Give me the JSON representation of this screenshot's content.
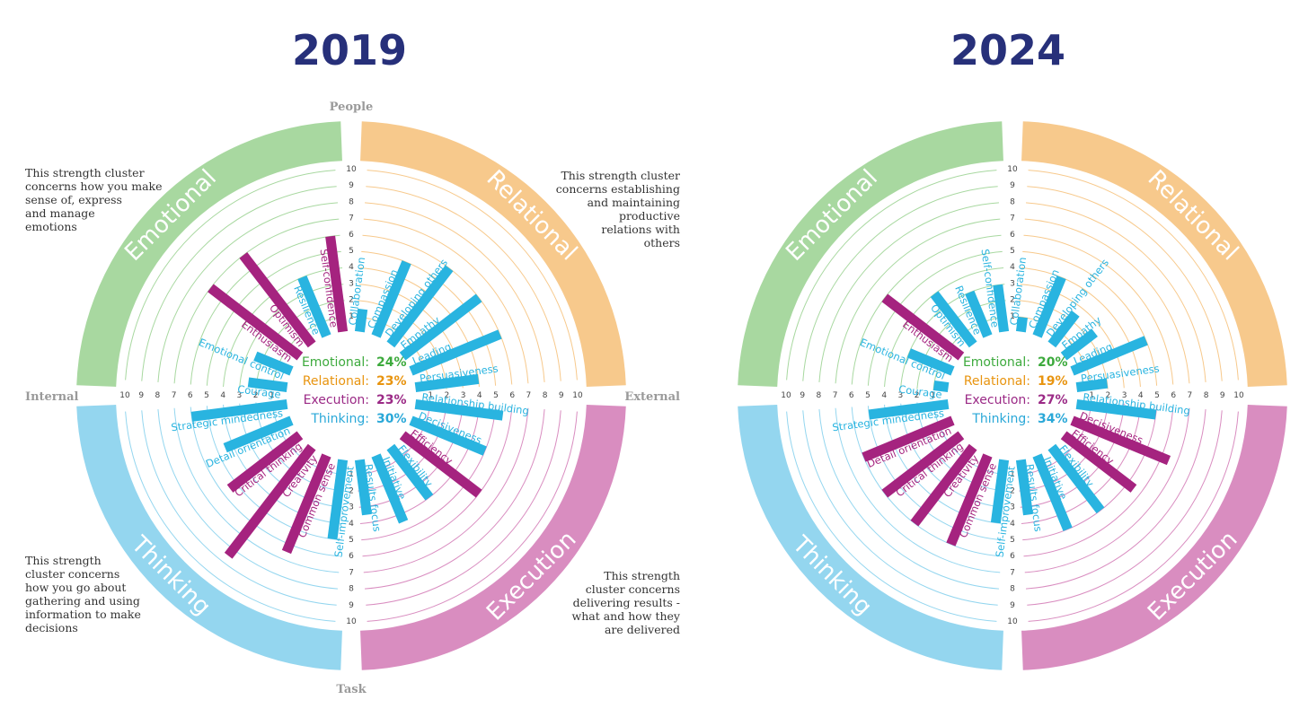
{
  "colors": {
    "Emotional": "#a8d8a0",
    "Relational": "#f7c98c",
    "Execution": "#d98dc0",
    "Thinking": "#94d6ef",
    "bar_cyan": "#29b4e0",
    "bar_magenta": "#a5237f",
    "year_text": "#27307a",
    "summary_Emotional": "#3daa3d",
    "summary_Relational": "#e8940f",
    "summary_Execution": "#9b2a86",
    "summary_Thinking": "#2aa8d8"
  },
  "axes": {
    "top": "People",
    "bottom": "Task",
    "left": "Internal",
    "right": "External"
  },
  "scale_ticks": [
    "1",
    "2",
    "3",
    "4",
    "5",
    "6",
    "7",
    "8",
    "9",
    "10"
  ],
  "descriptions": {
    "Emotional": "This strength cluster\nconcerns how you make\nsense of, express\nand manage\nemotions",
    "Relational": "This strength cluster\nconcerns establishing\nand maintaining\nproductive\nrelations with\nothers",
    "Thinking": "This strength\ncluster concerns\nhow you go about\ngathering and using\ninformation to make\ndecisions",
    "Execution": "This strength\ncluster concerns\ndelivering results -\nwhat and how they\nare delivered"
  },
  "chart_data": [
    {
      "type": "radial-bar",
      "title": "2019",
      "quadrants": [
        "Emotional",
        "Relational",
        "Execution",
        "Thinking"
      ],
      "summary": [
        {
          "name": "Emotional:",
          "value": "24%"
        },
        {
          "name": "Relational:",
          "value": "23%"
        },
        {
          "name": "Execution:",
          "value": "23%"
        },
        {
          "name": "Thinking:",
          "value": "30%"
        }
      ],
      "bars": [
        {
          "label": "Courage",
          "value": 2.5,
          "color": "cyan"
        },
        {
          "label": "Emotional control",
          "value": 2.5,
          "color": "cyan"
        },
        {
          "label": "Enthusiasm",
          "value": 7,
          "color": "magenta"
        },
        {
          "label": "Optimism",
          "value": 7,
          "color": "magenta"
        },
        {
          "label": "Resilience",
          "value": 4,
          "color": "cyan"
        },
        {
          "label": "Self-confidence",
          "value": 6,
          "color": "magenta"
        },
        {
          "label": "Collaboration",
          "value": 1.5,
          "color": "cyan"
        },
        {
          "label": "Compassion",
          "value": 5,
          "color": "cyan"
        },
        {
          "label": "Developing others",
          "value": 6,
          "color": "cyan"
        },
        {
          "label": "Empathy",
          "value": 6,
          "color": "cyan"
        },
        {
          "label": "Leading",
          "value": 6,
          "color": "cyan"
        },
        {
          "label": "Persuasiveness",
          "value": 4,
          "color": "cyan"
        },
        {
          "label": "Relationship building",
          "value": 5.5,
          "color": "cyan"
        },
        {
          "label": "Decisiveness",
          "value": 5,
          "color": "cyan"
        },
        {
          "label": "Efficiency",
          "value": 6,
          "color": "magenta"
        },
        {
          "label": "Flexibility",
          "value": 4,
          "color": "cyan"
        },
        {
          "label": "Initiative",
          "value": 4.5,
          "color": "cyan"
        },
        {
          "label": "Results focus",
          "value": 3.5,
          "color": "cyan"
        },
        {
          "label": "Self-improvement",
          "value": 5,
          "color": "cyan"
        },
        {
          "label": "Common sense",
          "value": 6.5,
          "color": "magenta"
        },
        {
          "label": "Creativity",
          "value": 8.5,
          "color": "magenta"
        },
        {
          "label": "Critical thinking",
          "value": 5.5,
          "color": "magenta"
        },
        {
          "label": "Detail orientation",
          "value": 4.5,
          "color": "cyan"
        },
        {
          "label": "Strategic mindedness",
          "value": 6,
          "color": "cyan"
        }
      ]
    },
    {
      "type": "radial-bar",
      "title": "2024",
      "quadrants": [
        "Emotional",
        "Relational",
        "Execution",
        "Thinking"
      ],
      "summary": [
        {
          "name": "Emotional:",
          "value": "20%"
        },
        {
          "name": "Relational:",
          "value": "19%"
        },
        {
          "name": "Execution:",
          "value": "27%"
        },
        {
          "name": "Thinking:",
          "value": "34%"
        }
      ],
      "bars": [
        {
          "label": "Courage",
          "value": 1,
          "color": "cyan"
        },
        {
          "label": "Emotional control",
          "value": 3,
          "color": "cyan"
        },
        {
          "label": "Enthusiasm",
          "value": 6,
          "color": "magenta"
        },
        {
          "label": "Optimism",
          "value": 4,
          "color": "cyan"
        },
        {
          "label": "Resilience",
          "value": 3,
          "color": "cyan"
        },
        {
          "label": "Self-confidence",
          "value": 3,
          "color": "cyan"
        },
        {
          "label": "Collaboration",
          "value": 1,
          "color": "cyan"
        },
        {
          "label": "Compassion",
          "value": 4,
          "color": "cyan"
        },
        {
          "label": "Developing others",
          "value": 2.5,
          "color": "cyan"
        },
        {
          "label": "Empathy",
          "value": 2.5,
          "color": "cyan"
        },
        {
          "label": "Leading",
          "value": 5,
          "color": "cyan"
        },
        {
          "label": "Persuasiveness",
          "value": 2,
          "color": "cyan"
        },
        {
          "label": "Relationship building",
          "value": 5,
          "color": "cyan"
        },
        {
          "label": "Decisiveness",
          "value": 6.5,
          "color": "magenta"
        },
        {
          "label": "Efficiency",
          "value": 5.5,
          "color": "magenta"
        },
        {
          "label": "Flexibility",
          "value": 5,
          "color": "cyan"
        },
        {
          "label": "Initiative",
          "value": 5,
          "color": "cyan"
        },
        {
          "label": "Results focus",
          "value": 3.5,
          "color": "cyan"
        },
        {
          "label": "Self-improvement",
          "value": 4,
          "color": "cyan"
        },
        {
          "label": "Common sense",
          "value": 6,
          "color": "magenta"
        },
        {
          "label": "Creativity",
          "value": 6,
          "color": "magenta"
        },
        {
          "label": "Critical thinking",
          "value": 6,
          "color": "magenta"
        },
        {
          "label": "Detail orientation",
          "value": 6,
          "color": "magenta"
        },
        {
          "label": "Strategic mindedness",
          "value": 5,
          "color": "cyan"
        }
      ]
    }
  ]
}
